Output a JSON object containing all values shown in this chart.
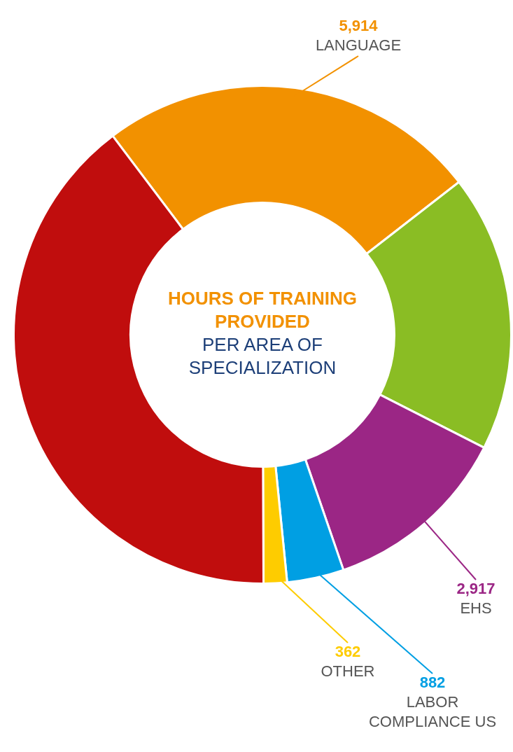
{
  "chart_data": {
    "type": "donut",
    "title": "HOURS OF TRAINING PROVIDED",
    "subtitle": "PER AREA OF SPECIALIZATION",
    "categories": [
      "LANGUAGE",
      null,
      "EHS",
      "LABOR COMPLIANCE US",
      "OTHER",
      null
    ],
    "values": [
      5914,
      4300,
      2917,
      882,
      362,
      9500
    ],
    "colors": [
      "#f29100",
      "#8abd24",
      "#9b2685",
      "#009fe3",
      "#fecc00",
      "#c00d0d"
    ],
    "value_labels": [
      "5,914",
      null,
      "2,917",
      "882",
      "362",
      null
    ]
  }
}
